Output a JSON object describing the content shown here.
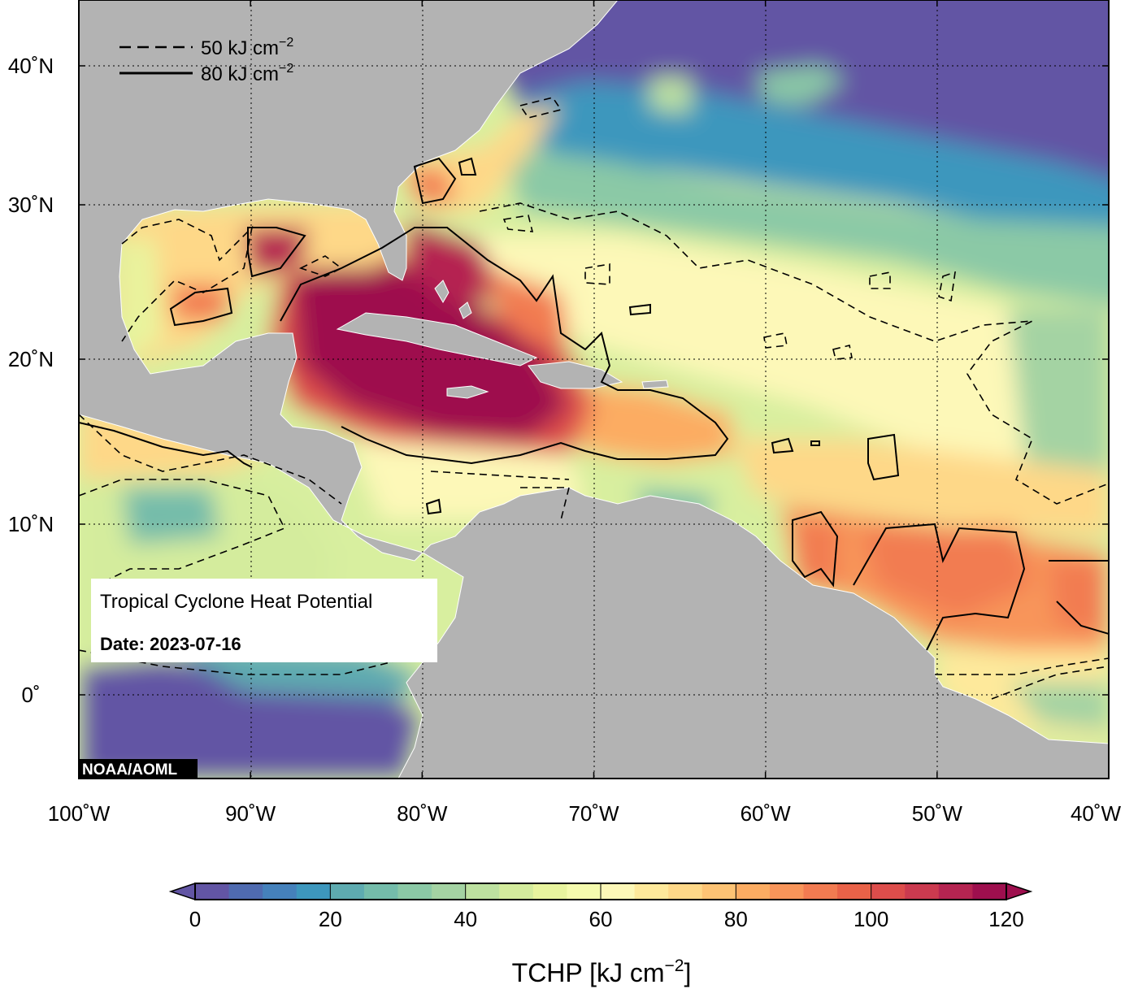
{
  "map": {
    "title": "Tropical Cyclone Heat Potential",
    "date_label": "Date: 2023-07-16",
    "credit": "NOAA/AOML",
    "region": "Gulf of Mexico, Caribbean Sea and tropical North Atlantic",
    "lon_range": [
      -100,
      -40
    ],
    "lat_range": [
      -5,
      44
    ],
    "grid": "dotted",
    "lon_ticks": [
      {
        "value": -100,
        "label": "100˚W"
      },
      {
        "value": -90,
        "label": "90˚W"
      },
      {
        "value": -80,
        "label": "80˚W"
      },
      {
        "value": -70,
        "label": "70˚W"
      },
      {
        "value": -60,
        "label": "60˚W"
      },
      {
        "value": -50,
        "label": "50˚W"
      },
      {
        "value": -40,
        "label": "40˚W"
      }
    ],
    "lat_ticks": [
      {
        "value": 40,
        "label": "40˚N"
      },
      {
        "value": 30,
        "label": "30˚N"
      },
      {
        "value": 20,
        "label": "20˚N"
      },
      {
        "value": 10,
        "label": "10˚N"
      },
      {
        "value": 0,
        "label": "0˚"
      }
    ],
    "land_color": "#b3b3b3",
    "legend": {
      "placement": "top-left",
      "entries": [
        {
          "style": "dashed",
          "label": "50 kJ cm",
          "sup": "−2"
        },
        {
          "style": "solid",
          "label": "80 kJ cm",
          "sup": "−2"
        }
      ]
    }
  },
  "colorbar": {
    "label": "TCHP [kJ cm",
    "label_sup": "−2",
    "label_end": "]",
    "min": 0,
    "max": 120,
    "step": 5,
    "ticks": [
      "0",
      "20",
      "40",
      "60",
      "80",
      "100",
      "120"
    ],
    "colors": [
      "#6255a4",
      "#4f6bb0",
      "#4581bb",
      "#3d97bd",
      "#5eabb0",
      "#74bcaa",
      "#8bc9a6",
      "#a4d3a3",
      "#bde1a0",
      "#d4ec9d",
      "#e8f49e",
      "#f5fbae",
      "#fdf8b8",
      "#fee99b",
      "#fed888",
      "#fdc374",
      "#fcac62",
      "#f8955a",
      "#f27b51",
      "#e96248",
      "#dd4d4b",
      "#cb3a4f",
      "#b52451",
      "#9e0f4e"
    ],
    "extend": "both"
  }
}
